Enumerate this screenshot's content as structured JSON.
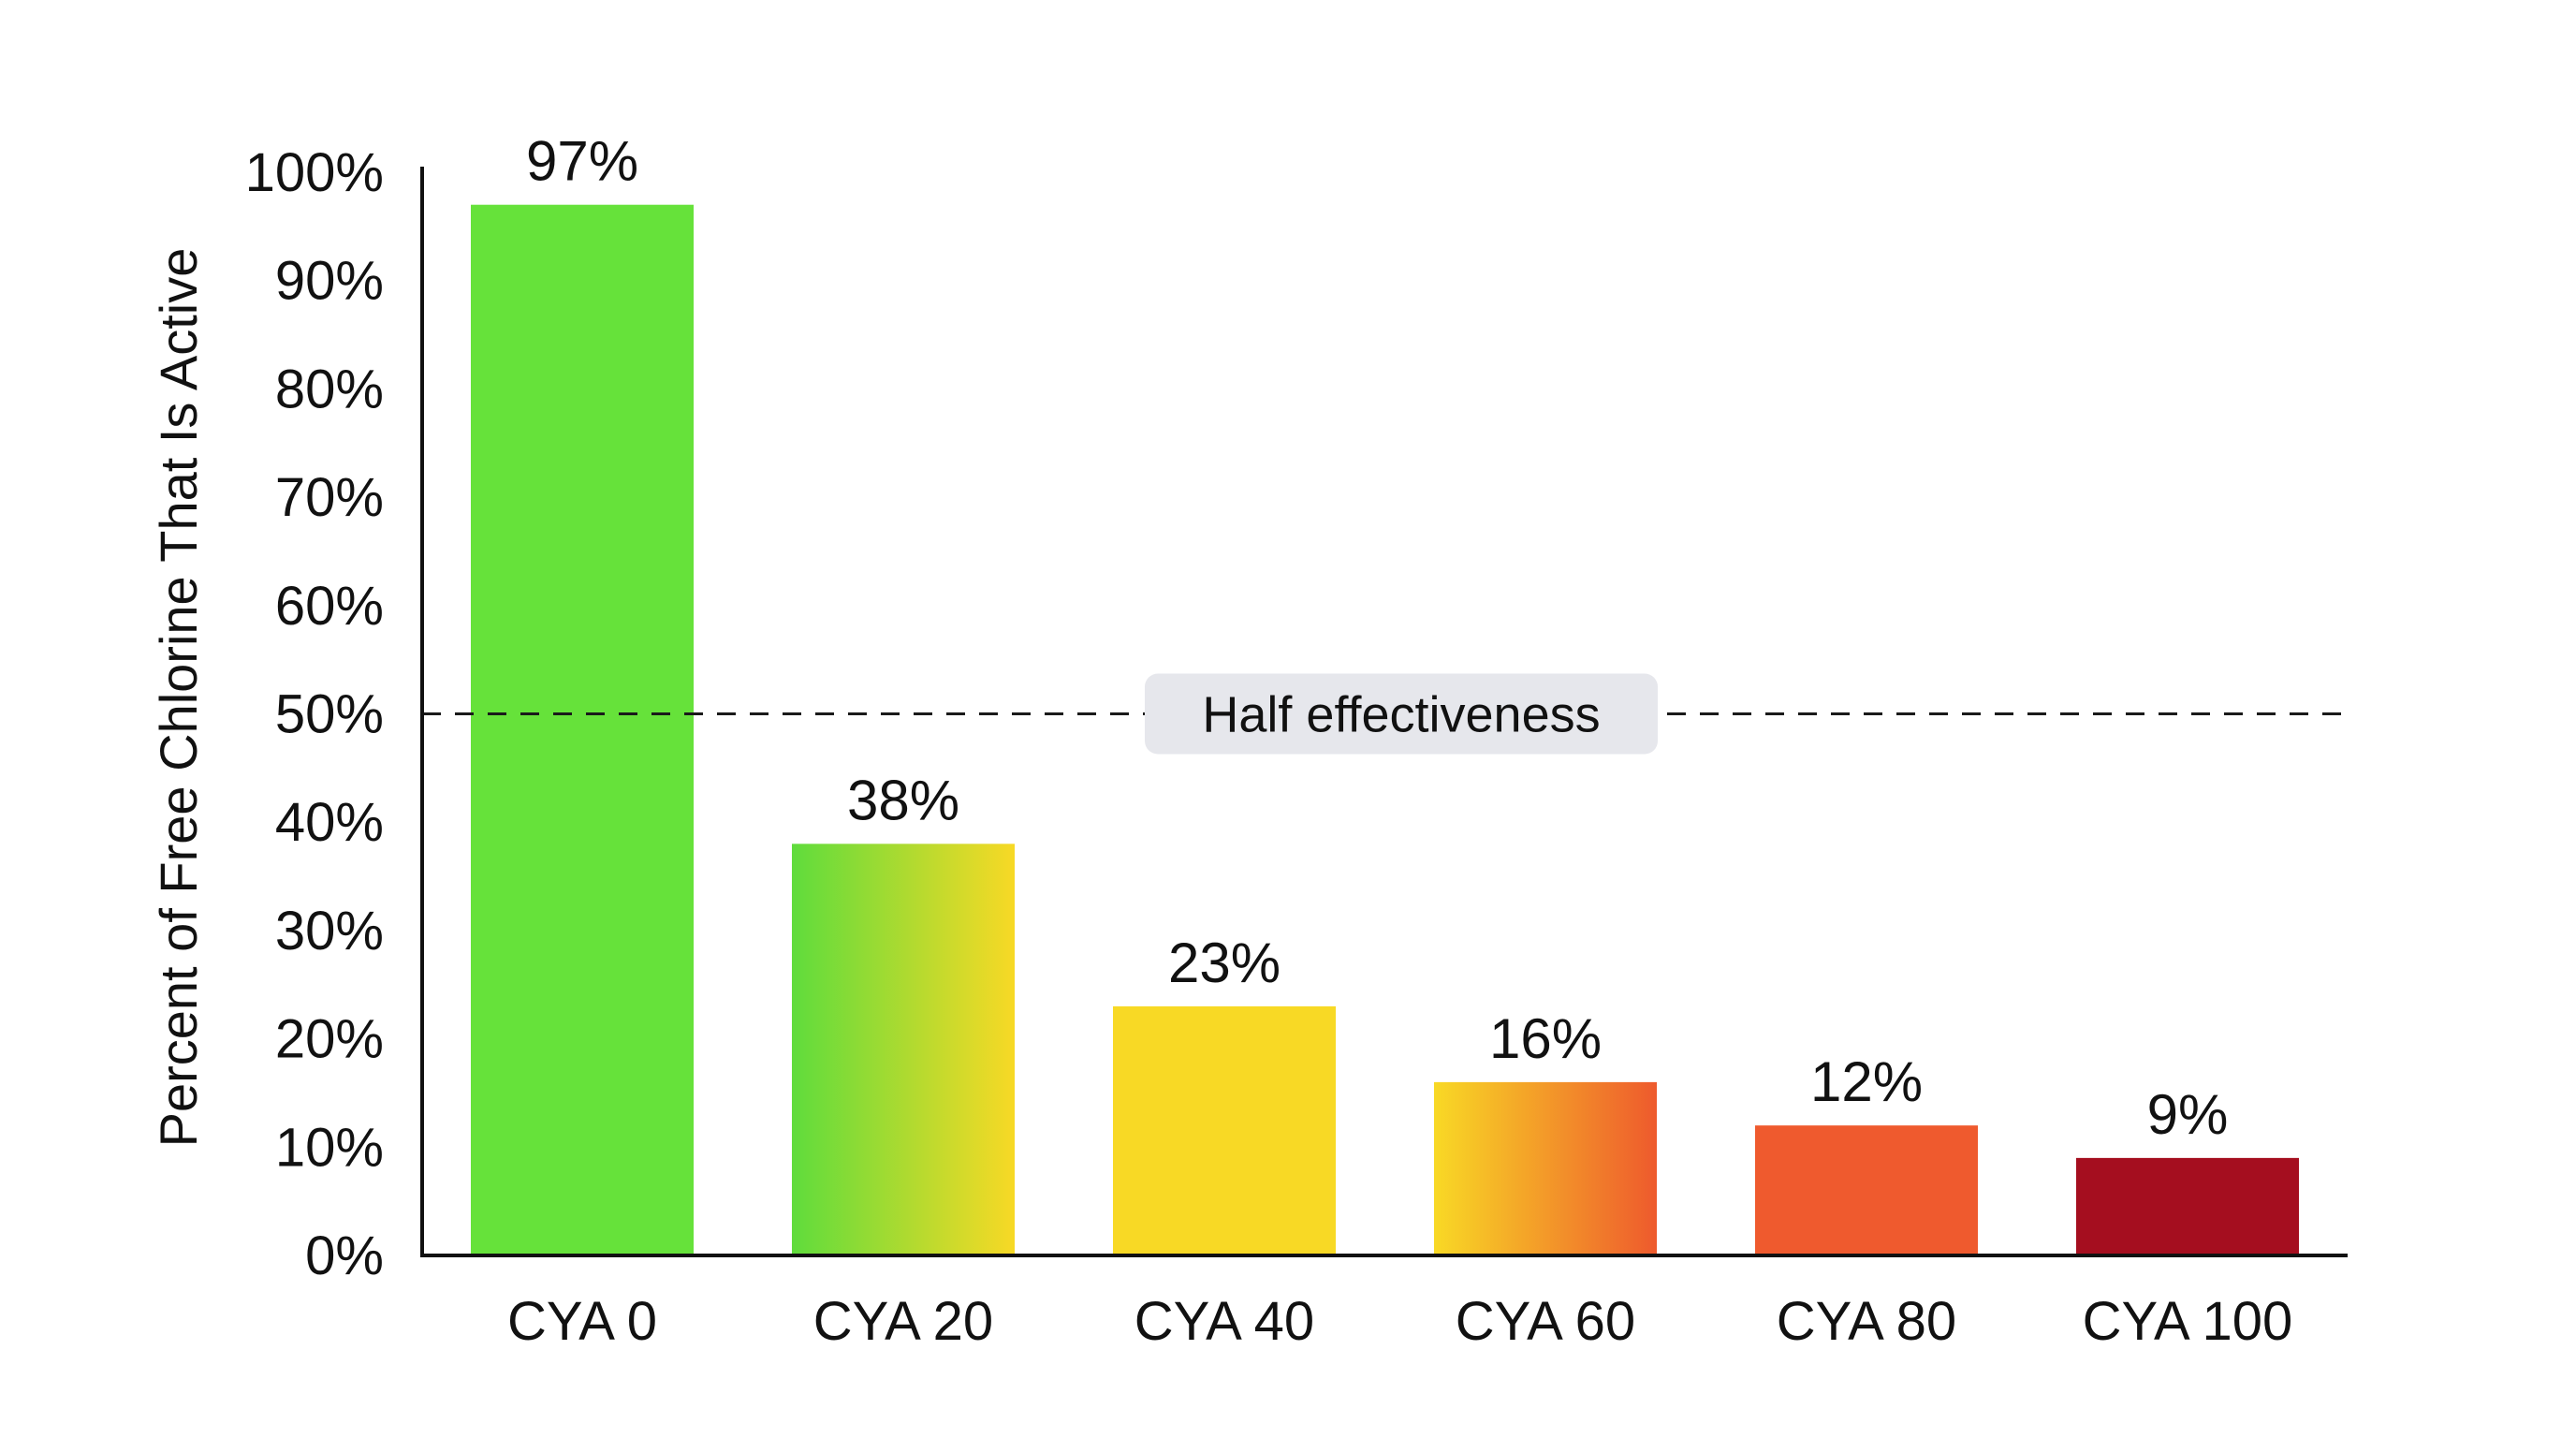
{
  "chart_data": {
    "type": "bar",
    "title": "",
    "xlabel": "",
    "ylabel": "Percent of Free Chlorine That Is Active",
    "ylim": [
      0,
      100
    ],
    "yticks": [
      "0%",
      "10%",
      "20%",
      "30%",
      "40%",
      "50%",
      "60%",
      "70%",
      "80%",
      "90%",
      "100%"
    ],
    "categories": [
      "CYA 0",
      "CYA 20",
      "CYA 40",
      "CYA 60",
      "CYA 80",
      "CYA 100"
    ],
    "values": [
      97,
      38,
      23,
      16,
      12,
      9
    ],
    "value_labels": [
      "97%",
      "38%",
      "23%",
      "16%",
      "12%",
      "9%"
    ],
    "bar_colors": [
      [
        "#66e23a",
        "#66e23a"
      ],
      [
        "#5fdc3c",
        "#f8d925"
      ],
      [
        "#f8d925",
        "#f8d925"
      ],
      [
        "#f8d925",
        "#ee5a2d"
      ],
      [
        "#ef5a2e",
        "#ef5a2e"
      ],
      [
        "#a50e1f",
        "#a50e1f"
      ]
    ],
    "reference_line": {
      "value": 50,
      "label": "Half effectiveness",
      "style": "dashed"
    },
    "grid": false,
    "legend": "none"
  }
}
